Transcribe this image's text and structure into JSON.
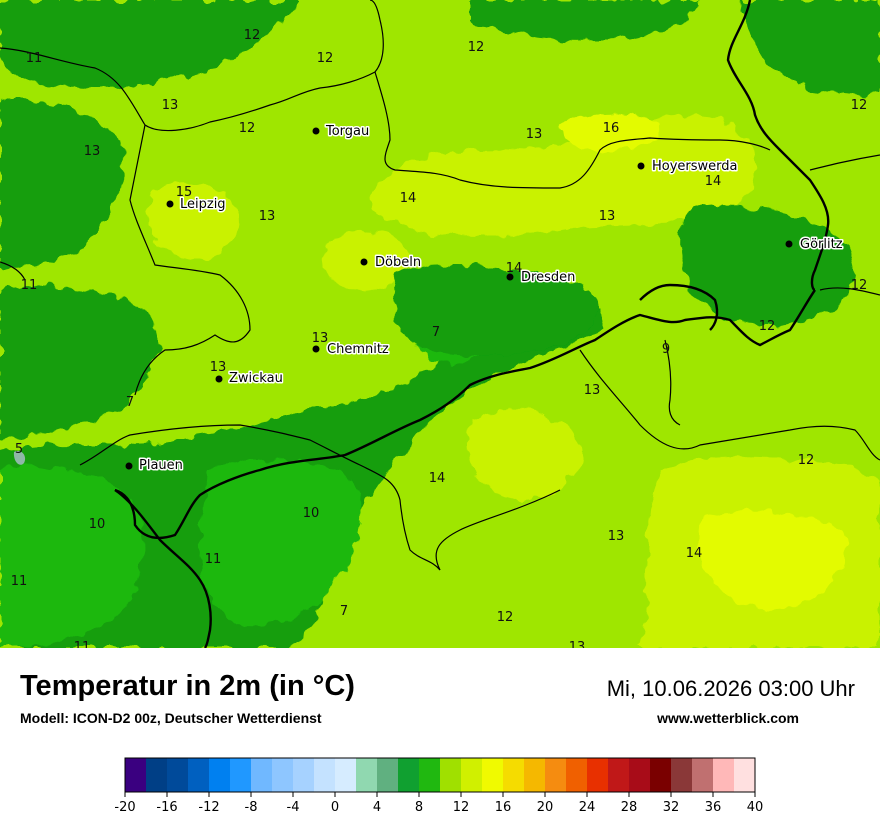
{
  "header": {
    "title": "Temperatur in 2m (in °C)",
    "model": "Modell: ICON-D2 00z, Deutscher Wetterdienst",
    "datetime": "Mi, 10.06.2026 03:00 Uhr",
    "website": "www.wetterblick.com"
  },
  "colors": {
    "c7": "#1db80f",
    "c9": "#129e08",
    "c11": "#9fe600",
    "c13": "#c9f200",
    "c15": "#e3fb00",
    "border": "#000000",
    "water": "#8fb8a8"
  },
  "cities": [
    {
      "name": "Torgau"
    },
    {
      "name": "Leipzig"
    },
    {
      "name": "Hoyerswerda"
    },
    {
      "name": "Görlitz"
    },
    {
      "name": "Döbeln"
    },
    {
      "name": "Dresden"
    },
    {
      "name": "Chemnitz"
    },
    {
      "name": "Zwickau"
    },
    {
      "name": "Plauen"
    }
  ],
  "value_labels": [
    "11",
    "12",
    "12",
    "12",
    "13",
    "12",
    "13",
    "16",
    "12",
    "13",
    "14",
    "15",
    "13",
    "14",
    "13",
    "14",
    "11",
    "12",
    "13",
    "7",
    "9",
    "12",
    "13",
    "7",
    "13",
    "5",
    "12",
    "14",
    "10",
    "10",
    "11",
    "13",
    "14",
    "11",
    "7",
    "12",
    "11",
    "13"
  ],
  "legend": {
    "colors": [
      "#3a0080",
      "#003f86",
      "#004a9a",
      "#0060c0",
      "#0080f0",
      "#2098ff",
      "#70b8ff",
      "#8ec6ff",
      "#a6d2ff",
      "#c4e2ff",
      "#d6ecff",
      "#90d8b0",
      "#60b080",
      "#10a030",
      "#20b810",
      "#a0e000",
      "#d0f000",
      "#f0fa00",
      "#f5dc00",
      "#f5b800",
      "#f58c10",
      "#f06000",
      "#e83000",
      "#c01818",
      "#a80c18",
      "#7a0000",
      "#8a3838",
      "#c07070",
      "#ffb8b8",
      "#ffe0e0"
    ],
    "ticks": [
      "-20",
      "-16",
      "-12",
      "-8",
      "-4",
      "0",
      "4",
      "8",
      "12",
      "16",
      "20",
      "24",
      "28",
      "32",
      "36",
      "40"
    ]
  }
}
